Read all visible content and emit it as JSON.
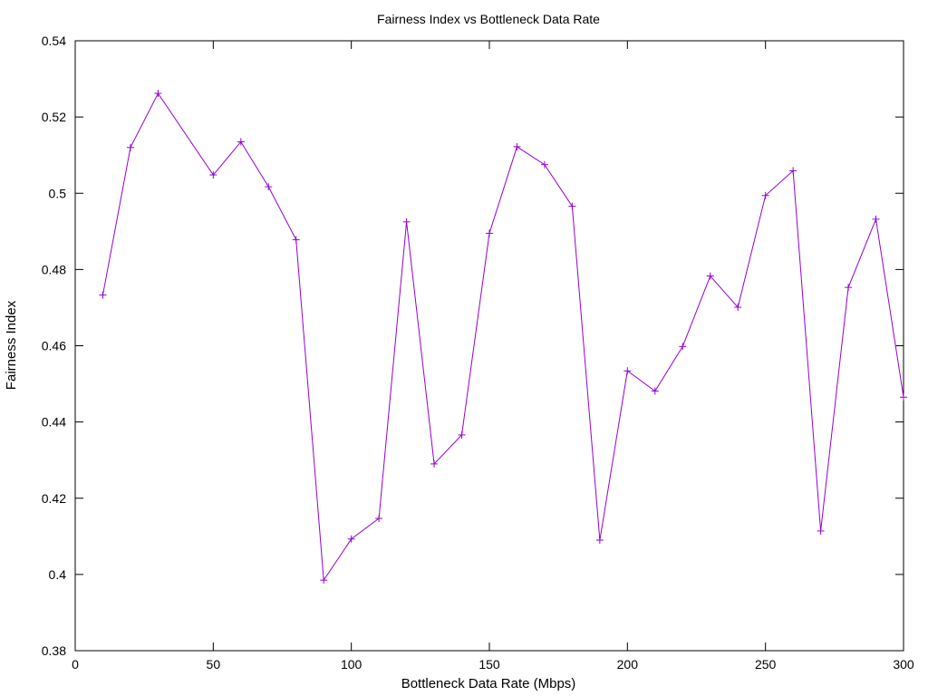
{
  "chart_data": {
    "type": "line",
    "title": "Fairness Index vs Bottleneck Data Rate",
    "xlabel": "Bottleneck Data Rate (Mbps)",
    "ylabel": "Fairness Index",
    "xlim": [
      0,
      300
    ],
    "ylim": [
      0.38,
      0.54
    ],
    "x_ticks": [
      0,
      50,
      100,
      150,
      200,
      250,
      300
    ],
    "x_tick_labels": [
      "0",
      "50",
      "100",
      "150",
      "200",
      "250",
      "300"
    ],
    "y_ticks": [
      0.38,
      0.4,
      0.42,
      0.44,
      0.46,
      0.48,
      0.5,
      0.52,
      0.54
    ],
    "y_tick_labels": [
      "0.38",
      "0.4",
      "0.42",
      "0.44",
      "0.46",
      "0.48",
      "0.5",
      "0.52",
      "0.54"
    ],
    "grid": false,
    "legend": "none",
    "marker": "plus",
    "series": [
      {
        "color": "#9400d3",
        "x": [
          10,
          20,
          30,
          50,
          60,
          70,
          80,
          90,
          100,
          110,
          120,
          130,
          140,
          150,
          160,
          170,
          180,
          190,
          200,
          210,
          220,
          230,
          240,
          250,
          260,
          270,
          280,
          290,
          300
        ],
        "y": [
          0.4733,
          0.512,
          0.5262,
          0.5048,
          0.5135,
          0.5017,
          0.4878,
          0.3985,
          0.4093,
          0.4147,
          0.4925,
          0.429,
          0.4366,
          0.4895,
          0.5122,
          0.5075,
          0.4966,
          0.409,
          0.4534,
          0.4481,
          0.4598,
          0.4783,
          0.4701,
          0.4994,
          0.5059,
          0.4114,
          0.4753,
          0.4932,
          0.4465
        ]
      }
    ]
  }
}
